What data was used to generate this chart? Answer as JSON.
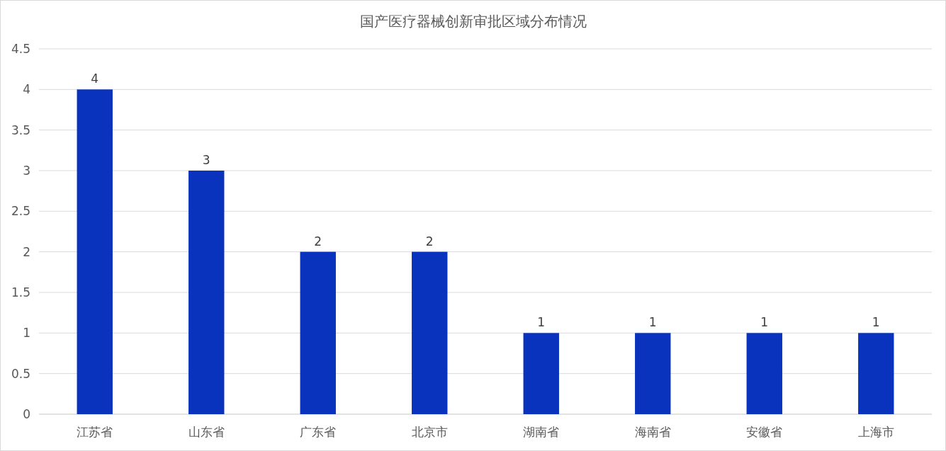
{
  "chart_data": {
    "type": "bar",
    "title": "国产医疗器械创新审批区域分布情况",
    "categories": [
      "江苏省",
      "山东省",
      "广东省",
      "北京市",
      "湖南省",
      "海南省",
      "安徽省",
      "上海市"
    ],
    "values": [
      4,
      3,
      2,
      2,
      1,
      1,
      1,
      1
    ],
    "color": "#0a33bd",
    "ylim": [
      0,
      4.5
    ],
    "yticks": [
      0,
      0.5,
      1,
      1.5,
      2,
      2.5,
      3,
      3.5,
      4,
      4.5
    ],
    "grid": "y",
    "data_labels": true
  }
}
